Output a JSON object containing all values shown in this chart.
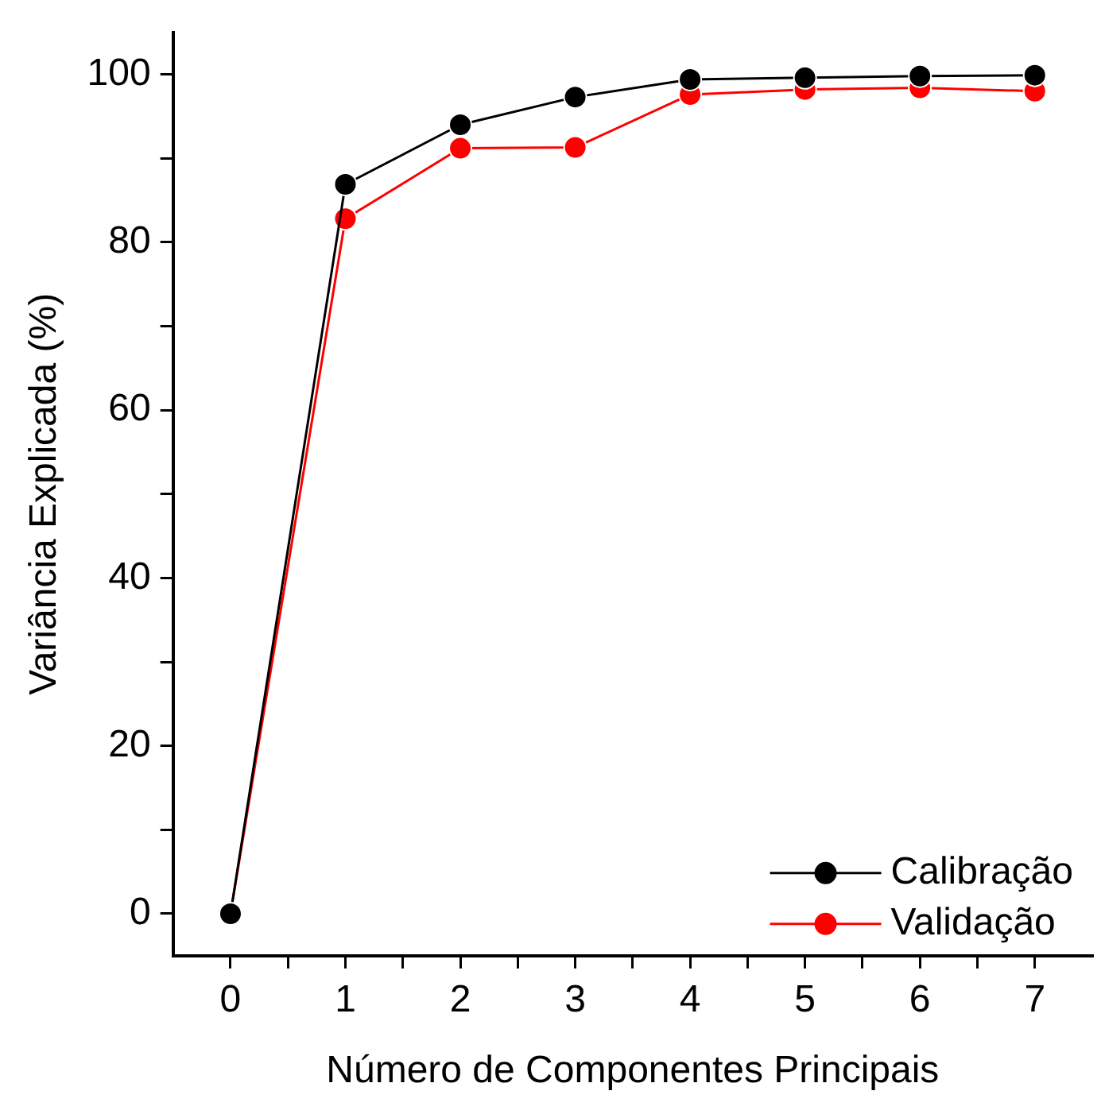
{
  "chart_data": {
    "type": "line",
    "xlabel": "Número de Componentes Principais",
    "ylabel": "Variância Explicada (%)",
    "x": [
      0,
      1,
      2,
      3,
      4,
      5,
      6,
      7
    ],
    "series": [
      {
        "name": "Calibração",
        "color": "#000000",
        "values": [
          0,
          86.9,
          94.0,
          97.3,
          99.4,
          99.6,
          99.8,
          99.9
        ]
      },
      {
        "name": "Validação",
        "color": "#ff0000",
        "values": [
          0,
          82.8,
          91.2,
          91.3,
          97.6,
          98.2,
          98.4,
          98.0
        ]
      }
    ],
    "xlim": [
      -0.5,
      7.5
    ],
    "xticks": [
      0,
      {
        "value": 0.5,
        "label": null
      },
      1,
      {
        "value": 1.5,
        "label": null
      },
      2,
      {
        "value": 2.5,
        "label": null
      },
      3,
      {
        "value": 3.5,
        "label": null
      },
      4,
      {
        "value": 4.5,
        "label": null
      },
      5,
      {
        "value": 5.5,
        "label": null
      },
      6,
      {
        "value": 6.5,
        "label": null
      },
      7
    ],
    "ylim": [
      -5,
      105
    ],
    "yticks": [
      0,
      {
        "value": 10,
        "label": null
      },
      20,
      {
        "value": 30,
        "label": null
      },
      40,
      {
        "value": 50,
        "label": null
      },
      60,
      {
        "value": 70,
        "label": null
      },
      80,
      {
        "value": 90,
        "label": null
      },
      100
    ],
    "grid": false,
    "legend": "bottom right",
    "marker": "circle",
    "line_style": "solid"
  }
}
